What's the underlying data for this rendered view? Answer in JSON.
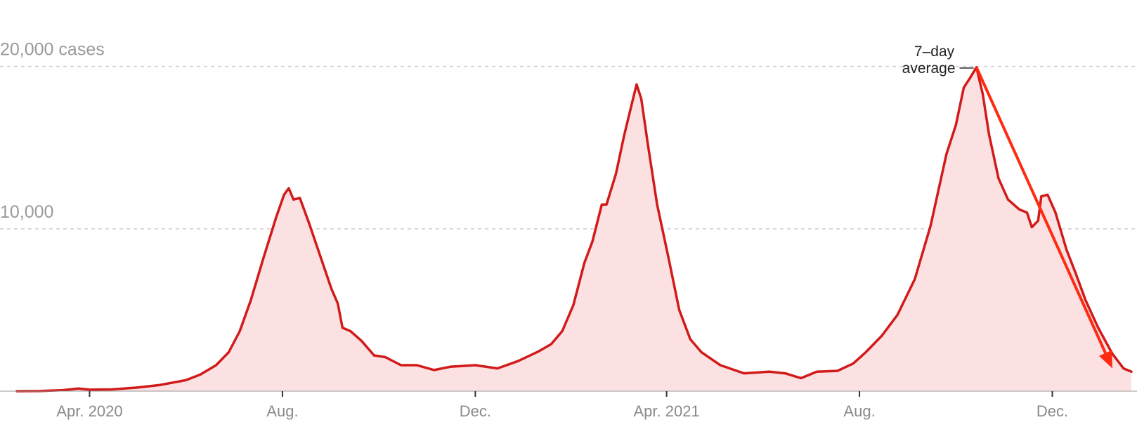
{
  "chart_data": {
    "type": "area",
    "title": "",
    "xlabel": "",
    "ylabel": "",
    "y_unit_label": "cases",
    "ylim": [
      0,
      21500
    ],
    "xlim": [
      "2020-02-15",
      "2022-01-20"
    ],
    "grid": true,
    "legend": "none",
    "colors": {
      "line": "#d21a1a",
      "fill": "#fbe1e1",
      "arrow": "#ff2a10"
    },
    "y_ticks": [
      {
        "value": 10000,
        "label": "10,000"
      },
      {
        "value": 20000,
        "label": "20,000 cases"
      }
    ],
    "x_ticks": [
      {
        "date": "2020-04-01",
        "label": "Apr. 2020"
      },
      {
        "date": "2020-08-01",
        "label": "Aug."
      },
      {
        "date": "2020-12-01",
        "label": "Dec."
      },
      {
        "date": "2021-04-01",
        "label": "Apr. 2021"
      },
      {
        "date": "2021-08-01",
        "label": "Aug."
      },
      {
        "date": "2021-12-01",
        "label": "Dec."
      }
    ],
    "series": [
      {
        "points": [
          [
            "2020-02-15",
            0
          ],
          [
            "2020-03-01",
            10
          ],
          [
            "2020-03-15",
            60
          ],
          [
            "2020-03-25",
            160
          ],
          [
            "2020-04-01",
            90
          ],
          [
            "2020-04-15",
            110
          ],
          [
            "2020-05-01",
            220
          ],
          [
            "2020-05-15",
            370
          ],
          [
            "2020-06-01",
            680
          ],
          [
            "2020-06-10",
            1020
          ],
          [
            "2020-06-20",
            1600
          ],
          [
            "2020-06-28",
            2400
          ],
          [
            "2020-07-05",
            3700
          ],
          [
            "2020-07-12",
            5600
          ],
          [
            "2020-07-20",
            8200
          ],
          [
            "2020-07-28",
            10700
          ],
          [
            "2020-08-02",
            12100
          ],
          [
            "2020-08-05",
            12500
          ],
          [
            "2020-08-08",
            11800
          ],
          [
            "2020-08-12",
            11900
          ],
          [
            "2020-08-18",
            10300
          ],
          [
            "2020-08-25",
            8300
          ],
          [
            "2020-09-01",
            6300
          ],
          [
            "2020-09-05",
            5400
          ],
          [
            "2020-09-08",
            3900
          ],
          [
            "2020-09-13",
            3700
          ],
          [
            "2020-09-20",
            3100
          ],
          [
            "2020-09-28",
            2200
          ],
          [
            "2020-10-05",
            2100
          ],
          [
            "2020-10-15",
            1600
          ],
          [
            "2020-10-25",
            1600
          ],
          [
            "2020-11-05",
            1300
          ],
          [
            "2020-11-15",
            1500
          ],
          [
            "2020-12-01",
            1600
          ],
          [
            "2020-12-15",
            1400
          ],
          [
            "2020-12-28",
            1850
          ],
          [
            "2021-01-10",
            2450
          ],
          [
            "2021-01-18",
            2900
          ],
          [
            "2021-01-25",
            3700
          ],
          [
            "2021-02-01",
            5300
          ],
          [
            "2021-02-08",
            7900
          ],
          [
            "2021-02-13",
            9200
          ],
          [
            "2021-02-19",
            11500
          ],
          [
            "2021-02-22",
            11500
          ],
          [
            "2021-02-28",
            13400
          ],
          [
            "2021-03-05",
            15700
          ],
          [
            "2021-03-10",
            17700
          ],
          [
            "2021-03-13",
            18900
          ],
          [
            "2021-03-16",
            18000
          ],
          [
            "2021-03-20",
            15300
          ],
          [
            "2021-03-26",
            11500
          ],
          [
            "2021-04-02",
            8300
          ],
          [
            "2021-04-09",
            5000
          ],
          [
            "2021-04-16",
            3200
          ],
          [
            "2021-04-23",
            2400
          ],
          [
            "2021-05-05",
            1600
          ],
          [
            "2021-05-20",
            1100
          ],
          [
            "2021-06-05",
            1200
          ],
          [
            "2021-06-15",
            1100
          ],
          [
            "2021-06-25",
            800
          ],
          [
            "2021-07-05",
            1200
          ],
          [
            "2021-07-18",
            1250
          ],
          [
            "2021-07-28",
            1700
          ],
          [
            "2021-08-05",
            2400
          ],
          [
            "2021-08-15",
            3400
          ],
          [
            "2021-08-25",
            4700
          ],
          [
            "2021-09-05",
            6900
          ],
          [
            "2021-09-15",
            10200
          ],
          [
            "2021-09-25",
            14600
          ],
          [
            "2021-10-01",
            16400
          ],
          [
            "2021-10-06",
            18700
          ],
          [
            "2021-10-10",
            19300
          ],
          [
            "2021-10-14",
            19950
          ],
          [
            "2021-10-18",
            18300
          ],
          [
            "2021-10-22",
            15800
          ],
          [
            "2021-10-28",
            13100
          ],
          [
            "2021-11-03",
            11800
          ],
          [
            "2021-11-10",
            11200
          ],
          [
            "2021-11-15",
            11000
          ],
          [
            "2021-11-18",
            10100
          ],
          [
            "2021-11-22",
            10500
          ],
          [
            "2021-11-24",
            12000
          ],
          [
            "2021-11-28",
            12100
          ],
          [
            "2021-12-03",
            11000
          ],
          [
            "2021-12-10",
            8700
          ],
          [
            "2021-12-16",
            7200
          ],
          [
            "2021-12-22",
            5600
          ],
          [
            "2021-12-30",
            3900
          ],
          [
            "2022-01-08",
            2300
          ],
          [
            "2022-01-15",
            1400
          ],
          [
            "2022-01-20",
            1200
          ]
        ]
      }
    ],
    "annotations": [
      {
        "text_lines": [
          "7–day",
          "average"
        ],
        "date": "2021-10-14",
        "value": 19950
      }
    ],
    "arrows": [
      {
        "from": [
          "2021-10-14",
          19950
        ],
        "to": [
          "2022-01-08",
          1400
        ]
      }
    ]
  }
}
